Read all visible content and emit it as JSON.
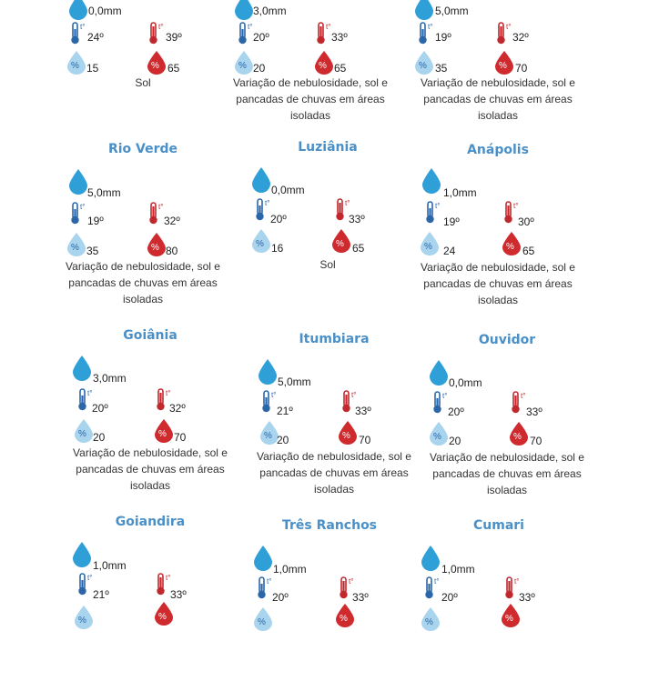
{
  "cities": [
    {
      "name": "",
      "rain": "0,0mm",
      "tmin": "24º",
      "tmax": "39º",
      "hmin": "15",
      "hmax": "65",
      "desc": "Sol"
    },
    {
      "name": "",
      "rain": "3,0mm",
      "tmin": "20º",
      "tmax": "33º",
      "hmin": "20",
      "hmax": "65",
      "desc": "Variação de nebulosidade, sol e pancadas de chuvas em áreas isoladas"
    },
    {
      "name": "",
      "rain": "5,0mm",
      "tmin": "19º",
      "tmax": "32º",
      "hmin": "35",
      "hmax": "70",
      "desc": "Variação de nebulosidade, sol e pancadas de chuvas em áreas isoladas"
    },
    {
      "name": "Rio Verde",
      "rain": "5,0mm",
      "tmin": "19º",
      "tmax": "32º",
      "hmin": "35",
      "hmax": "80",
      "desc": "Variação de nebulosidade, sol e pancadas de chuvas em áreas isoladas"
    },
    {
      "name": "Luziânia",
      "rain": "0,0mm",
      "tmin": "20º",
      "tmax": "33º",
      "hmin": "16",
      "hmax": "65",
      "desc": "Sol"
    },
    {
      "name": "Anápolis",
      "rain": "1,0mm",
      "tmin": "19º",
      "tmax": "30º",
      "hmin": "24",
      "hmax": "65",
      "desc": "Variação de nebulosidade, sol e pancadas de chuvas em áreas isoladas"
    },
    {
      "name": "Goiânia",
      "rain": "3,0mm",
      "tmin": "20º",
      "tmax": "32º",
      "hmin": "20",
      "hmax": "70",
      "desc": "Variação de nebulosidade, sol e pancadas de chuvas em áreas isoladas"
    },
    {
      "name": "Itumbiara",
      "rain": "5,0mm",
      "tmin": "21º",
      "tmax": "33º",
      "hmin": "20",
      "hmax": "70",
      "desc": "Variação de nebulosidade, sol e pancadas de chuvas em áreas isoladas"
    },
    {
      "name": "Ouvidor",
      "rain": "0,0mm",
      "tmin": "20º",
      "tmax": "33º",
      "hmin": "20",
      "hmax": "70",
      "desc": "Variação de nebulosidade, sol e pancadas de chuvas em áreas isoladas"
    },
    {
      "name": "Goiandira",
      "rain": "1,0mm",
      "tmin": "21º",
      "tmax": "33º",
      "hmin": "",
      "hmax": "",
      "desc": ""
    },
    {
      "name": "Três Ranchos",
      "rain": "1,0mm",
      "tmin": "20º",
      "tmax": "33º",
      "hmin": "",
      "hmax": "",
      "desc": ""
    },
    {
      "name": "Cumari",
      "rain": "1,0mm",
      "tmin": "20º",
      "tmax": "33º",
      "hmin": "",
      "hmax": "",
      "desc": ""
    }
  ],
  "icons": {
    "rain": "rain-drop-icon",
    "tmin": "thermometer-cold-icon",
    "tmax": "thermometer-hot-icon",
    "hmin": "humidity-low-icon",
    "hmax": "humidity-high-icon",
    "thermo_label": "t°",
    "percent_label": "%"
  },
  "colors": {
    "city_name": "#4a90c8",
    "rain_drop": "#2f9fd8",
    "thermo_cold": "#2a66a8",
    "thermo_hot": "#c0282d",
    "humidity_low": "#a9d4ee",
    "humidity_high": "#cf2a2e"
  }
}
